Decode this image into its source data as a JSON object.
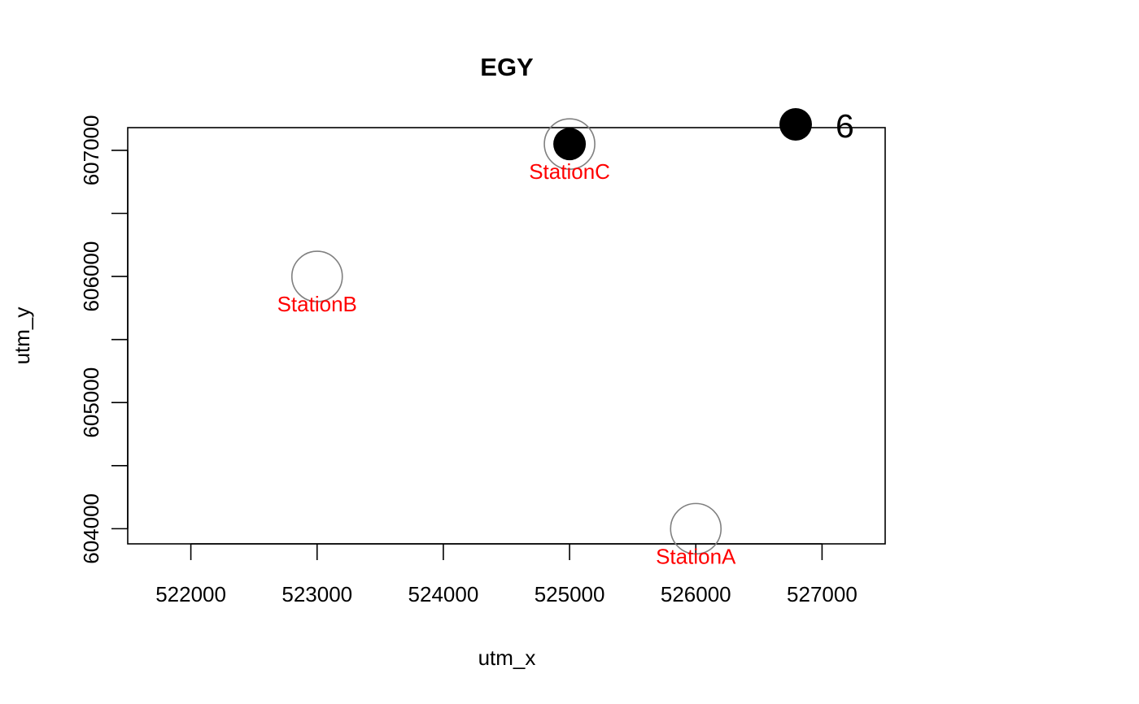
{
  "chart_data": {
    "type": "scatter",
    "title": "EGY",
    "xlabel": "utm_x",
    "ylabel": "utm_y",
    "xlim": [
      521500,
      527500
    ],
    "ylim": [
      603880,
      607180
    ],
    "x_ticks": [
      522000,
      523000,
      524000,
      525000,
      526000,
      527000
    ],
    "x_tick_labels": [
      "522000",
      "523000",
      "524000",
      "525000",
      "526000",
      "527000"
    ],
    "y_ticks": [
      604000,
      604500,
      605000,
      605500,
      606000,
      606500,
      607000
    ],
    "y_tick_labels": [
      "604000",
      "",
      "605000",
      "",
      "606000",
      "",
      "607000"
    ],
    "grid": false,
    "stations": [
      {
        "label": "StationA",
        "x": 526000,
        "y": 604000
      },
      {
        "label": "StationB",
        "x": 523000,
        "y": 606000
      },
      {
        "label": "StationC",
        "x": 525000,
        "y": 607050
      }
    ],
    "points": [
      {
        "x": 525000,
        "y": 607050
      }
    ],
    "legend": {
      "label": "6",
      "placement": "top-right, outside plot"
    },
    "colors": {
      "station_circle": "#808080",
      "station_label": "#ff0000",
      "point": "#000000"
    }
  }
}
